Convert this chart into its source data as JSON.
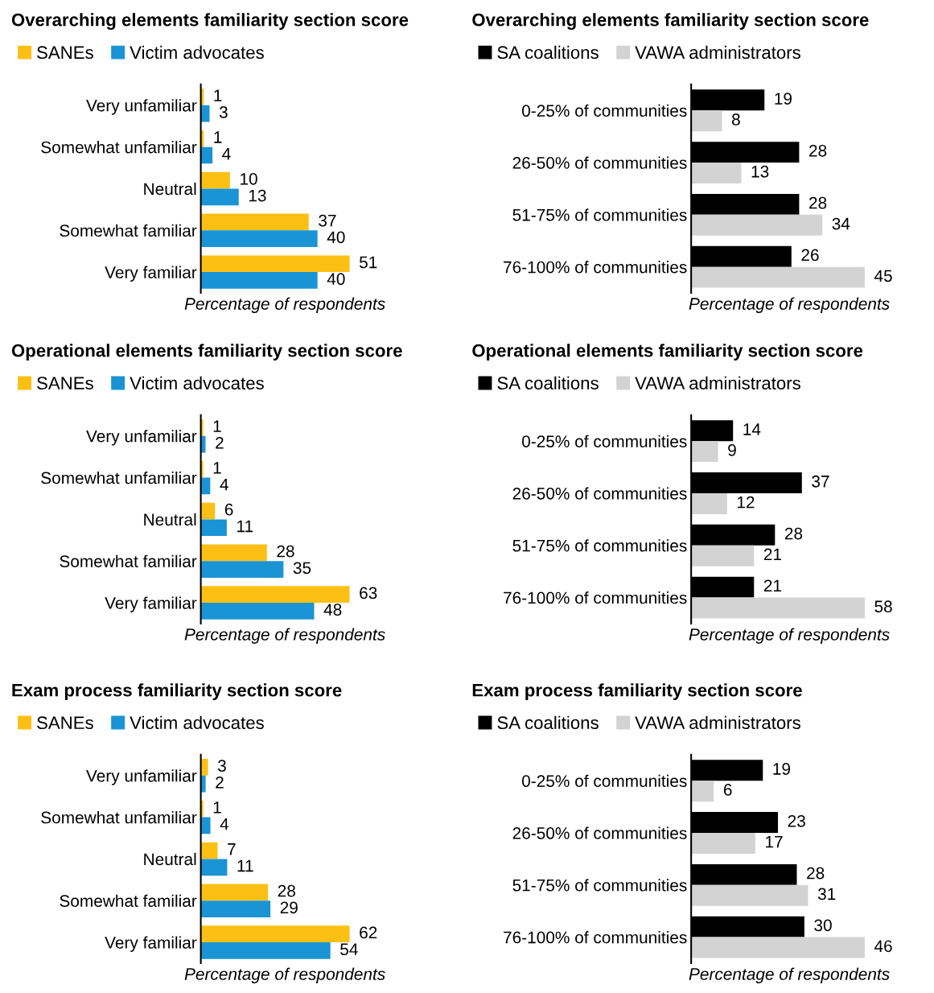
{
  "chart_data": [
    {
      "type": "bar",
      "orientation": "horizontal",
      "title": "Overarching elements familiarity section score",
      "xlabel": "Percentage of respondents",
      "categories": [
        "Very unfamiliar",
        "Somewhat unfamiliar",
        "Neutral",
        "Somewhat familiar",
        "Very familiar"
      ],
      "series": [
        {
          "name": "SANEs",
          "color": "#fcc015",
          "values": [
            1,
            1,
            10,
            37,
            51
          ]
        },
        {
          "name": "Victim advocates",
          "color": "#1a94d4",
          "values": [
            3,
            4,
            13,
            40,
            40
          ]
        }
      ],
      "data_labels": true,
      "legend": "top left",
      "tick_labels": "y",
      "grid": false
    },
    {
      "type": "bar",
      "orientation": "horizontal",
      "title": "Overarching elements familiarity section score",
      "xlabel": "Percentage of respondents",
      "categories": [
        "0-25% of communities",
        "26-50% of communities",
        "51-75% of communities",
        "76-100% of communities"
      ],
      "series": [
        {
          "name": "SA coalitions",
          "color": "#000000",
          "values": [
            19,
            28,
            28,
            26
          ]
        },
        {
          "name": "VAWA administrators",
          "color": "#d3d3d3",
          "values": [
            8,
            13,
            34,
            45
          ]
        }
      ],
      "data_labels": true,
      "legend": "top left",
      "tick_labels": "y",
      "grid": false
    },
    {
      "type": "bar",
      "orientation": "horizontal",
      "title": "Operational elements familiarity section score",
      "xlabel": "Percentage of respondents",
      "categories": [
        "Very unfamiliar",
        "Somewhat unfamiliar",
        "Neutral",
        "Somewhat familiar",
        "Very familiar"
      ],
      "series": [
        {
          "name": "SANEs",
          "color": "#fcc015",
          "values": [
            1,
            1,
            6,
            28,
            63
          ]
        },
        {
          "name": "Victim advocates",
          "color": "#1a94d4",
          "values": [
            2,
            4,
            11,
            35,
            48
          ]
        }
      ],
      "data_labels": true,
      "legend": "top left",
      "tick_labels": "y",
      "grid": false
    },
    {
      "type": "bar",
      "orientation": "horizontal",
      "title": "Operational elements familiarity section score",
      "xlabel": "Percentage of respondents",
      "categories": [
        "0-25% of communities",
        "26-50% of communities",
        "51-75% of communities",
        "76-100% of communities"
      ],
      "series": [
        {
          "name": "SA coalitions",
          "color": "#000000",
          "values": [
            14,
            37,
            28,
            21
          ]
        },
        {
          "name": "VAWA administrators",
          "color": "#d3d3d3",
          "values": [
            9,
            12,
            21,
            58
          ]
        }
      ],
      "data_labels": true,
      "legend": "top left",
      "tick_labels": "y",
      "grid": false
    },
    {
      "type": "bar",
      "orientation": "horizontal",
      "title": "Exam process familiarity section score",
      "xlabel": "Percentage of respondents",
      "categories": [
        "Very unfamiliar",
        "Somewhat unfamiliar",
        "Neutral",
        "Somewhat familiar",
        "Very familiar"
      ],
      "series": [
        {
          "name": "SANEs",
          "color": "#fcc015",
          "values": [
            3,
            1,
            7,
            28,
            62
          ]
        },
        {
          "name": "Victim advocates",
          "color": "#1a94d4",
          "values": [
            2,
            4,
            11,
            29,
            54
          ]
        }
      ],
      "data_labels": true,
      "legend": "top left",
      "tick_labels": "y",
      "grid": false
    },
    {
      "type": "bar",
      "orientation": "horizontal",
      "title": "Exam process familiarity section score",
      "xlabel": "Percentage of respondents",
      "categories": [
        "0-25% of communities",
        "26-50% of communities",
        "51-75% of communities",
        "76-100% of communities"
      ],
      "series": [
        {
          "name": "SA coalitions",
          "color": "#000000",
          "values": [
            19,
            23,
            28,
            30
          ]
        },
        {
          "name": "VAWA administrators",
          "color": "#d3d3d3",
          "values": [
            6,
            17,
            31,
            46
          ]
        }
      ],
      "data_labels": true,
      "legend": "top left",
      "tick_labels": "y",
      "grid": false
    }
  ]
}
